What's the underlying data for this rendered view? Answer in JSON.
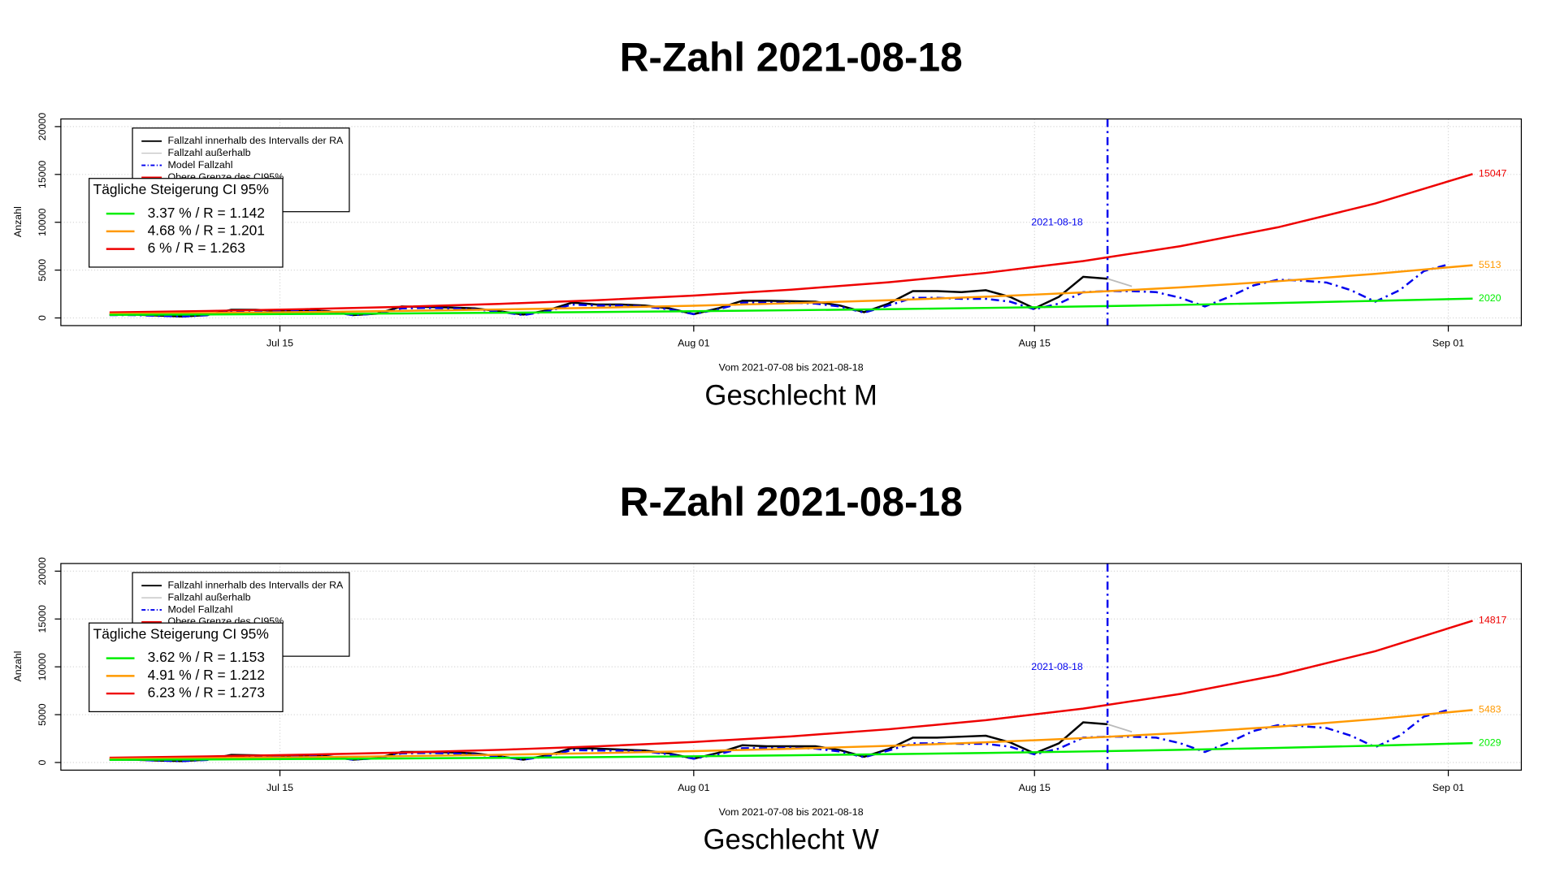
{
  "chart_data": [
    {
      "type": "line",
      "title": "R-Zahl 2021-08-18",
      "subtitle": "Geschlecht M",
      "xlabel": "Vom 2021-07-08 bis 2021-08-18",
      "ylabel": "Anzahl",
      "x": [
        "2021-07-08",
        "2021-07-09",
        "2021-07-10",
        "2021-07-11",
        "2021-07-12",
        "2021-07-13",
        "2021-07-14",
        "2021-07-15",
        "2021-07-16",
        "2021-07-17",
        "2021-07-18",
        "2021-07-19",
        "2021-07-20",
        "2021-07-21",
        "2021-07-22",
        "2021-07-23",
        "2021-07-24",
        "2021-07-25",
        "2021-07-26",
        "2021-07-27",
        "2021-07-28",
        "2021-07-29",
        "2021-07-30",
        "2021-07-31",
        "2021-08-01",
        "2021-08-02",
        "2021-08-03",
        "2021-08-04",
        "2021-08-05",
        "2021-08-06",
        "2021-08-07",
        "2021-08-08",
        "2021-08-09",
        "2021-08-10",
        "2021-08-11",
        "2021-08-12",
        "2021-08-13",
        "2021-08-14",
        "2021-08-15",
        "2021-08-16",
        "2021-08-17",
        "2021-08-18",
        "2021-08-19",
        "2021-08-20",
        "2021-08-21",
        "2021-08-22",
        "2021-08-23",
        "2021-08-24",
        "2021-08-25",
        "2021-08-26",
        "2021-08-27",
        "2021-08-28",
        "2021-08-29",
        "2021-08-30",
        "2021-08-31",
        "2021-09-01",
        "2021-09-02"
      ],
      "xlim": [
        "2021-07-06",
        "2021-09-04"
      ],
      "xticks": [
        {
          "value": "2021-07-15",
          "label": "Jul 15"
        },
        {
          "value": "2021-08-01",
          "label": "Aug 01"
        },
        {
          "value": "2021-08-15",
          "label": "Aug 15"
        },
        {
          "value": "2021-09-01",
          "label": "Sep 01"
        }
      ],
      "ylim": [
        -800,
        20800
      ],
      "yticks": [
        0,
        5000,
        10000,
        15000,
        20000
      ],
      "grid": true,
      "vline": {
        "x": "2021-08-18",
        "color": "#0000ee"
      },
      "series": [
        {
          "name": "Fallzahl innerhalb des Intervalls der RA",
          "color": "#000000",
          "values": [
            350,
            350,
            250,
            150,
            300,
            850,
            850,
            750,
            800,
            700,
            300,
            450,
            1200,
            1150,
            1100,
            1000,
            700,
            350,
            800,
            1600,
            1400,
            1400,
            1300,
            1000,
            400,
            1000,
            1800,
            1800,
            1750,
            1700,
            1300,
            600,
            1500,
            2800,
            2800,
            2700,
            2900,
            2200,
            1000,
            2200,
            4300,
            4100,
            null,
            null,
            null,
            null,
            null,
            null,
            null,
            null,
            null,
            null,
            null,
            null,
            null,
            null,
            null
          ]
        },
        {
          "name": "Fallzahl außerhalb",
          "color": "#bbbbbb",
          "values": [
            null,
            null,
            null,
            null,
            null,
            null,
            null,
            null,
            null,
            null,
            null,
            null,
            null,
            null,
            null,
            null,
            null,
            null,
            null,
            null,
            null,
            null,
            null,
            null,
            null,
            null,
            null,
            null,
            null,
            null,
            null,
            null,
            null,
            null,
            null,
            null,
            null,
            null,
            null,
            null,
            null,
            4100,
            3300,
            null,
            null,
            null,
            null,
            null,
            null,
            null,
            null,
            null,
            null,
            null,
            null,
            null,
            null
          ]
        },
        {
          "name": "Model Fallzahl",
          "color": "#0000ee",
          "linestyle": "dashdot",
          "values": [
            300,
            300,
            220,
            150,
            280,
            700,
            780,
            700,
            720,
            650,
            300,
            450,
            1000,
            1050,
            1000,
            900,
            650,
            300,
            700,
            1400,
            1300,
            1300,
            1200,
            900,
            400,
            900,
            1600,
            1600,
            1600,
            1500,
            1200,
            550,
            1300,
            2100,
            2100,
            2000,
            2000,
            1700,
            900,
            1500,
            2700,
            2800,
            2800,
            2700,
            2100,
            1200,
            2200,
            3400,
            4000,
            3900,
            3700,
            2900,
            1700,
            2900,
            4900,
            5600,
            null
          ]
        },
        {
          "name": "Obere Grenze des CI95%",
          "color": "#ee0000",
          "x": [
            "2021-07-08",
            "2021-07-12",
            "2021-07-16",
            "2021-07-20",
            "2021-07-24",
            "2021-07-28",
            "2021-08-01",
            "2021-08-05",
            "2021-08-09",
            "2021-08-13",
            "2021-08-17",
            "2021-08-21",
            "2021-08-25",
            "2021-08-29",
            "2021-09-02"
          ],
          "values": [
            578,
            730,
            921,
            1163,
            1468,
            1854,
            2340,
            2955,
            3730,
            4709,
            5945,
            7506,
            9476,
            11963,
            15047
          ]
        },
        {
          "color": "#ff9900",
          "x": [
            "2021-07-08",
            "2021-07-12",
            "2021-07-16",
            "2021-07-20",
            "2021-07-24",
            "2021-07-28",
            "2021-08-01",
            "2021-08-05",
            "2021-08-09",
            "2021-08-13",
            "2021-08-17",
            "2021-08-21",
            "2021-08-25",
            "2021-08-29",
            "2021-09-02"
          ],
          "values": [
            427,
            513,
            616,
            739,
            888,
            1066,
            1280,
            1537,
            1846,
            2217,
            2662,
            3196,
            3838,
            4609,
            5513
          ]
        },
        {
          "color": "#00ee00",
          "x": [
            "2021-07-08",
            "2021-07-12",
            "2021-07-16",
            "2021-07-20",
            "2021-07-24",
            "2021-07-28",
            "2021-08-01",
            "2021-08-05",
            "2021-08-09",
            "2021-08-13",
            "2021-08-17",
            "2021-08-21",
            "2021-08-25",
            "2021-08-29",
            "2021-09-02"
          ],
          "values": [
            318,
            363,
            415,
            473,
            540,
            617,
            705,
            805,
            919,
            1049,
            1198,
            1367,
            1561,
            1783,
            2020
          ]
        }
      ],
      "legend2": {
        "title": "Tägliche Steigerung CI  95%",
        "entries": [
          {
            "label": "3.37 % / R = 1.142",
            "color": "#00ee00"
          },
          {
            "label": "4.68 % / R = 1.201",
            "color": "#ff9900"
          },
          {
            "label": "6 % / R = 1.263",
            "color": "#ee0000"
          }
        ]
      }
    },
    {
      "type": "line",
      "title": "R-Zahl 2021-08-18",
      "subtitle": "Geschlecht W",
      "xlabel": "Vom 2021-07-08 bis 2021-08-18",
      "ylabel": "Anzahl",
      "x": [
        "2021-07-08",
        "2021-07-09",
        "2021-07-10",
        "2021-07-11",
        "2021-07-12",
        "2021-07-13",
        "2021-07-14",
        "2021-07-15",
        "2021-07-16",
        "2021-07-17",
        "2021-07-18",
        "2021-07-19",
        "2021-07-20",
        "2021-07-21",
        "2021-07-22",
        "2021-07-23",
        "2021-07-24",
        "2021-07-25",
        "2021-07-26",
        "2021-07-27",
        "2021-07-28",
        "2021-07-29",
        "2021-07-30",
        "2021-07-31",
        "2021-08-01",
        "2021-08-02",
        "2021-08-03",
        "2021-08-04",
        "2021-08-05",
        "2021-08-06",
        "2021-08-07",
        "2021-08-08",
        "2021-08-09",
        "2021-08-10",
        "2021-08-11",
        "2021-08-12",
        "2021-08-13",
        "2021-08-14",
        "2021-08-15",
        "2021-08-16",
        "2021-08-17",
        "2021-08-18",
        "2021-08-19",
        "2021-08-20",
        "2021-08-21",
        "2021-08-22",
        "2021-08-23",
        "2021-08-24",
        "2021-08-25",
        "2021-08-26",
        "2021-08-27",
        "2021-08-28",
        "2021-08-29",
        "2021-08-30",
        "2021-08-31",
        "2021-09-01",
        "2021-09-02"
      ],
      "xlim": [
        "2021-07-06",
        "2021-09-04"
      ],
      "xticks": [
        {
          "value": "2021-07-15",
          "label": "Jul 15"
        },
        {
          "value": "2021-08-01",
          "label": "Aug 01"
        },
        {
          "value": "2021-08-15",
          "label": "Aug 15"
        },
        {
          "value": "2021-09-01",
          "label": "Sep 01"
        }
      ],
      "ylim": [
        -800,
        20800
      ],
      "yticks": [
        0,
        5000,
        10000,
        15000,
        20000
      ],
      "grid": true,
      "vline": {
        "x": "2021-08-18",
        "color": "#0000ee"
      },
      "series": [
        {
          "name": "Fallzahl innerhalb des Intervalls der RA",
          "color": "#000000",
          "values": [
            300,
            300,
            200,
            150,
            300,
            800,
            750,
            700,
            750,
            650,
            300,
            450,
            1100,
            1100,
            1050,
            950,
            650,
            300,
            750,
            1500,
            1450,
            1350,
            1250,
            950,
            400,
            1000,
            1800,
            1700,
            1700,
            1700,
            1300,
            600,
            1400,
            2600,
            2600,
            2700,
            2800,
            2100,
            950,
            2000,
            4200,
            4000,
            null,
            null,
            null,
            null,
            null,
            null,
            null,
            null,
            null,
            null,
            null,
            null,
            null,
            null,
            null
          ]
        },
        {
          "name": "Fallzahl außerhalb",
          "color": "#bbbbbb",
          "values": [
            null,
            null,
            null,
            null,
            null,
            null,
            null,
            null,
            null,
            null,
            null,
            null,
            null,
            null,
            null,
            null,
            null,
            null,
            null,
            null,
            null,
            null,
            null,
            null,
            null,
            null,
            null,
            null,
            null,
            null,
            null,
            null,
            null,
            null,
            null,
            null,
            null,
            null,
            null,
            null,
            null,
            4000,
            3200,
            null,
            null,
            null,
            null,
            null,
            null,
            null,
            null,
            null,
            null,
            null,
            null,
            null,
            null
          ]
        },
        {
          "name": "Model Fallzahl",
          "color": "#0000ee",
          "linestyle": "dashdot",
          "values": [
            280,
            280,
            200,
            150,
            260,
            650,
            700,
            650,
            680,
            600,
            300,
            430,
            950,
            1000,
            950,
            850,
            620,
            300,
            650,
            1300,
            1250,
            1250,
            1150,
            850,
            400,
            850,
            1500,
            1500,
            1550,
            1450,
            1150,
            550,
            1250,
            2000,
            2000,
            1950,
            1950,
            1650,
            850,
            1450,
            2600,
            2700,
            2700,
            2600,
            2000,
            1100,
            2100,
            3300,
            3900,
            3800,
            3600,
            2800,
            1600,
            2800,
            4800,
            5500,
            null
          ]
        },
        {
          "name": "Obere Grenze des CI95%",
          "color": "#ee0000",
          "x": [
            "2021-07-08",
            "2021-07-12",
            "2021-07-16",
            "2021-07-20",
            "2021-07-24",
            "2021-07-28",
            "2021-08-01",
            "2021-08-05",
            "2021-08-09",
            "2021-08-13",
            "2021-08-17",
            "2021-08-21",
            "2021-08-25",
            "2021-08-29",
            "2021-09-02"
          ],
          "values": [
            502,
            639,
            814,
            1037,
            1320,
            1682,
            2142,
            2727,
            3473,
            4423,
            5633,
            7174,
            9136,
            11634,
            14817
          ]
        },
        {
          "color": "#ff9900",
          "x": [
            "2021-07-08",
            "2021-07-12",
            "2021-07-16",
            "2021-07-20",
            "2021-07-24",
            "2021-07-28",
            "2021-08-01",
            "2021-08-05",
            "2021-08-09",
            "2021-08-13",
            "2021-08-17",
            "2021-08-21",
            "2021-08-25",
            "2021-08-29",
            "2021-09-02"
          ],
          "values": [
            375,
            454,
            550,
            667,
            807,
            978,
            1185,
            1435,
            1739,
            2106,
            2551,
            3090,
            3743,
            4534,
            5483
          ]
        },
        {
          "color": "#00ee00",
          "x": [
            "2021-07-08",
            "2021-07-12",
            "2021-07-16",
            "2021-07-20",
            "2021-07-24",
            "2021-07-28",
            "2021-08-01",
            "2021-08-05",
            "2021-08-09",
            "2021-08-13",
            "2021-08-17",
            "2021-08-21",
            "2021-08-25",
            "2021-08-29",
            "2021-09-02"
          ],
          "values": [
            277,
            319,
            368,
            425,
            489,
            564,
            651,
            750,
            865,
            997,
            1150,
            1325,
            1528,
            1762,
            2029
          ]
        }
      ],
      "legend2": {
        "title": "Tägliche Steigerung CI  95%",
        "entries": [
          {
            "label": "3.62 % / R = 1.153",
            "color": "#00ee00"
          },
          {
            "label": "4.91 % / R = 1.212",
            "color": "#ff9900"
          },
          {
            "label": "6.23 % / R = 1.273",
            "color": "#ee0000"
          }
        ]
      }
    }
  ]
}
